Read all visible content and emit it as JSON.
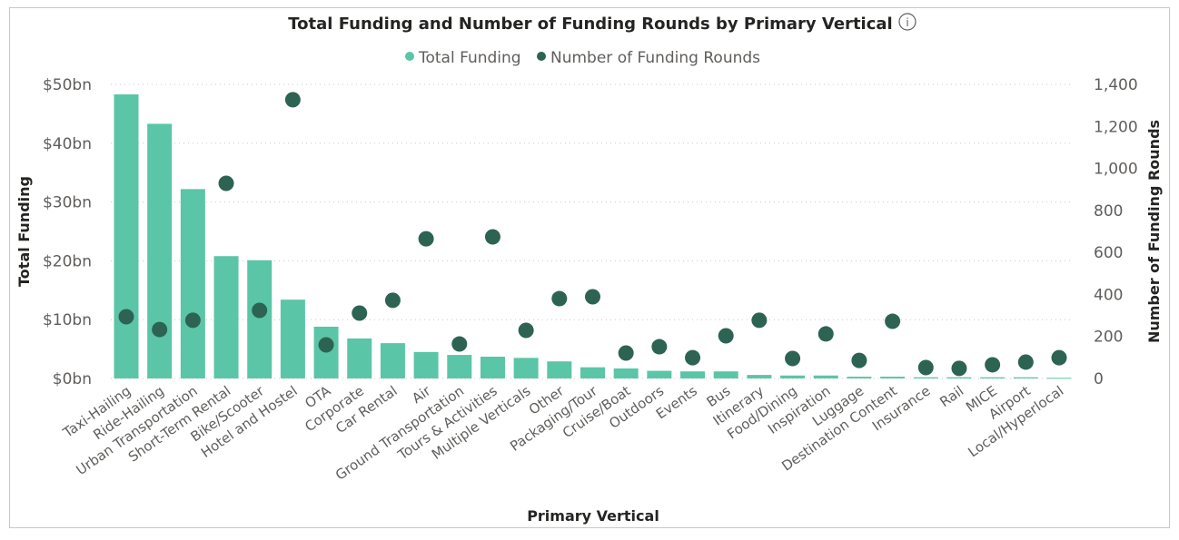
{
  "chart_data": {
    "type": "bar",
    "title": "Total Funding and Number of Funding Rounds by Primary Vertical",
    "xlabel": "Primary Vertical",
    "ylabel": "Total Funding",
    "y2label": "Number of Funding Rounds",
    "ylim": [
      0,
      50
    ],
    "y2lim": [
      0,
      1400
    ],
    "yticks": [
      "$0bn",
      "$10bn",
      "$20bn",
      "$30bn",
      "$40bn",
      "$50bn"
    ],
    "y2ticks": [
      "0",
      "200",
      "400",
      "600",
      "800",
      "1,000",
      "1,200",
      "1,400"
    ],
    "grid": true,
    "legend_position": "top-center",
    "categories": [
      "Taxi-Hailing",
      "Ride-Hailing",
      "Urban Transportation",
      "Short-Term Rental",
      "Bike/Scooter",
      "Hotel and Hostel",
      "OTA",
      "Corporate",
      "Car Rental",
      "Air",
      "Ground Transportation",
      "Tours & Activities",
      "Multiple Verticals",
      "Other",
      "Packaging/Tour",
      "Cruise/Boat",
      "Outdoors",
      "Events",
      "Bus",
      "Itinerary",
      "Food/Dining",
      "Inspiration",
      "Luggage",
      "Destination Content",
      "Insurance",
      "Rail",
      "MICE",
      "Airport",
      "Local/Hyperlocal"
    ],
    "series": [
      {
        "name": "Total Funding",
        "type": "bar",
        "axis": "left",
        "unit": "bn USD",
        "color": "#5bc5a7",
        "values": [
          48.3,
          43.3,
          32.2,
          20.8,
          20.1,
          13.4,
          8.8,
          6.8,
          6.0,
          4.5,
          4.0,
          3.7,
          3.5,
          2.9,
          1.9,
          1.7,
          1.3,
          1.2,
          1.2,
          0.6,
          0.5,
          0.5,
          0.3,
          0.3,
          0.2,
          0.2,
          0.2,
          0.2,
          0.1
        ]
      },
      {
        "name": "Number of Funding Rounds",
        "type": "scatter",
        "axis": "right",
        "color": "#2d6352",
        "values": [
          294,
          233,
          277,
          929,
          324,
          1327,
          160,
          311,
          372,
          665,
          164,
          674,
          229,
          380,
          389,
          121,
          151,
          99,
          203,
          277,
          95,
          212,
          86,
          272,
          52,
          48,
          65,
          78,
          99
        ]
      }
    ]
  },
  "info_icon": "info-circle-icon"
}
